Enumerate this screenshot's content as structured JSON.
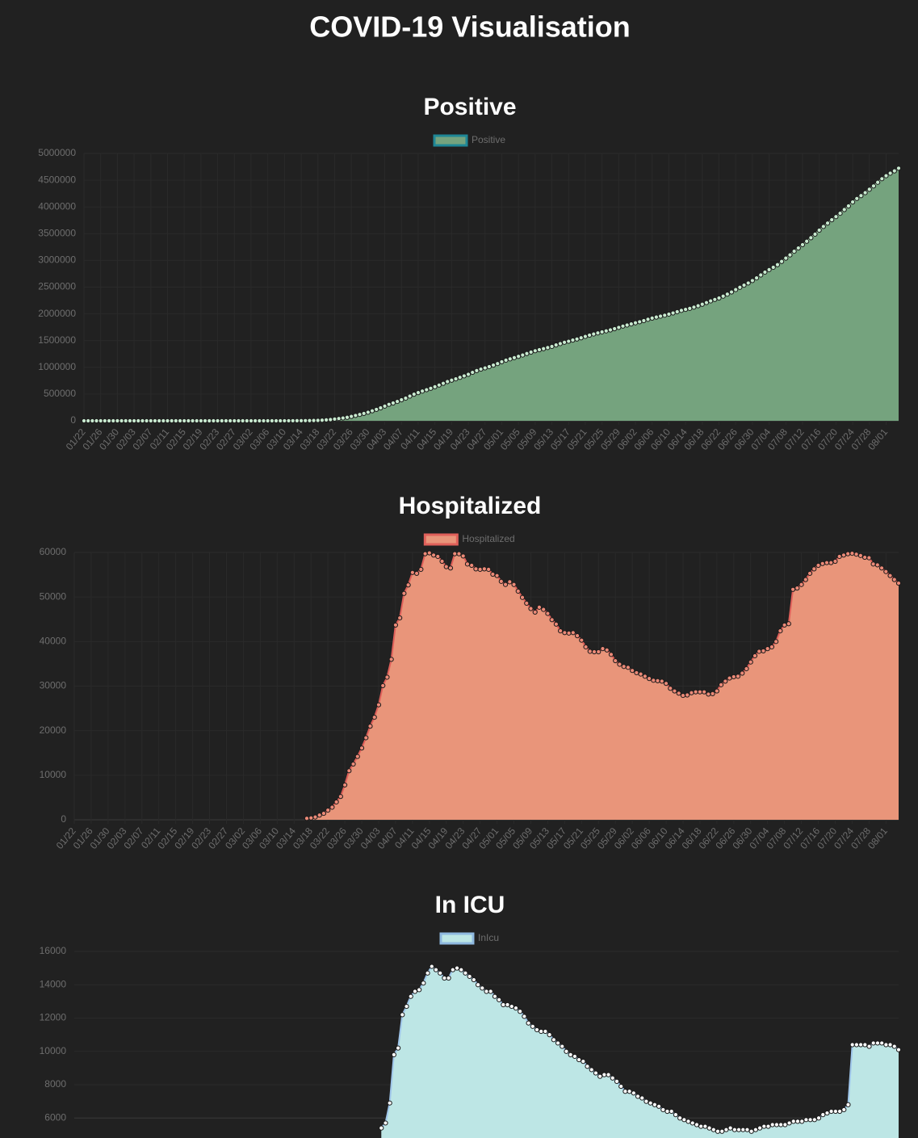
{
  "title": "COVID-19 Visualisation",
  "chart_data": [
    {
      "type": "line",
      "fill": true,
      "title": "Positive",
      "grid": true,
      "categories": [
        "01/22",
        null,
        null,
        null,
        "01/26",
        null,
        null,
        null,
        "01/30",
        null,
        null,
        null,
        "02/03",
        null,
        null,
        null,
        "02/07",
        null,
        null,
        null,
        "02/11",
        null,
        null,
        null,
        "02/15",
        null,
        null,
        null,
        "02/19",
        null,
        null,
        null,
        "02/23",
        null,
        null,
        null,
        "02/27",
        null,
        null,
        null,
        "03/02",
        null,
        null,
        null,
        "03/06",
        null,
        null,
        null,
        "03/10",
        null,
        null,
        null,
        "03/14",
        null,
        null,
        null,
        "03/18",
        null,
        null,
        null,
        "03/22",
        null,
        null,
        null,
        "03/26",
        null,
        null,
        null,
        "03/30",
        null,
        null,
        null,
        "04/03",
        null,
        null,
        null,
        "04/07",
        null,
        null,
        null,
        "04/11",
        null,
        null,
        null,
        "04/15",
        null,
        null,
        null,
        "04/19",
        null,
        null,
        null,
        "04/23",
        null,
        null,
        null,
        "04/27",
        null,
        null,
        null,
        "05/01",
        null,
        null,
        null,
        "05/05",
        null,
        null,
        null,
        "05/09",
        null,
        null,
        null,
        "05/13",
        null,
        null,
        null,
        "05/17",
        null,
        null,
        null,
        "05/21",
        null,
        null,
        null,
        "05/25",
        null,
        null,
        null,
        "05/29",
        null,
        null,
        null,
        "06/02",
        null,
        null,
        null,
        "06/06",
        null,
        null,
        null,
        "06/10",
        null,
        null,
        null,
        "06/14",
        null,
        null,
        null,
        "06/18",
        null,
        null,
        null,
        "06/22",
        null,
        null,
        null,
        "06/26",
        null,
        null,
        null,
        "06/30",
        null,
        null,
        null,
        "07/04",
        null,
        null,
        null,
        "07/08",
        null,
        null,
        null,
        "07/12",
        null,
        null,
        null,
        "07/16",
        null,
        null,
        null,
        "07/20",
        null,
        null,
        null,
        "07/24",
        null,
        null,
        null,
        "07/28",
        null,
        null,
        null,
        "08/01",
        null,
        null,
        null
      ],
      "ylim": [
        0,
        5000000
      ],
      "yticks": [
        0,
        500000,
        1000000,
        1500000,
        2000000,
        2500000,
        3000000,
        3500000,
        4000000,
        4500000,
        5000000
      ],
      "series": [
        {
          "name": "Positive",
          "color": "#75a37e",
          "border_color": "#1f8796",
          "line_color": "#a9d4ae",
          "point_color": "#c9ead0",
          "values": [
            0,
            0,
            0,
            0,
            0,
            0,
            0,
            0,
            0,
            0,
            0,
            0,
            0,
            0,
            0,
            0,
            0,
            0,
            0,
            0,
            0,
            0,
            0,
            0,
            0,
            0,
            0,
            0,
            0,
            0,
            0,
            0,
            0,
            0,
            0,
            0,
            0,
            0,
            0,
            17,
            29,
            48,
            118,
            176,
            223,
            341,
            417,
            584,
            778,
            1053,
            1315,
            1922,
            2450,
            3173,
            4019,
            5722,
            7730,
            11723,
            17038,
            23203,
            31888,
            42164,
            51970,
            63928,
            80735,
            99413,
            118234,
            137058,
            159689,
            185991,
            212802,
            241626,
            274059,
            307091,
            332308,
            361331,
            392594,
            423164,
            461437,
            496535,
            526396,
            555313,
            580619,
            607413,
            636350,
            667592,
            699706,
            732197,
            758809,
            784326,
            811865,
            839675,
            868395,
            905358,
            938154,
            965785,
            988451,
            1012582,
            1039909,
            1069424,
            1103781,
            1133069,
            1158040,
            1180375,
            1204351,
            1229331,
            1257023,
            1283929,
            1309550,
            1329260,
            1347881,
            1369376,
            1390406,
            1417774,
            1442824,
            1467820,
            1486757,
            1508308,
            1528568,
            1551853,
            1577147,
            1600937,
            1622612,
            1643246,
            1662302,
            1680913,
            1699176,
            1721750,
            1746019,
            1770165,
            1790172,
            1811277,
            1831821,
            1851520,
            1872660,
            1897838,
            1920061,
            1938823,
            1956527,
            1973797,
            1994283,
            2016027,
            2039636,
            2064018,
            2083253,
            2101867,
            2125066,
            2151264,
            2178710,
            2210097,
            2242014,
            2268753,
            2295657,
            2330578,
            2368403,
            2408213,
            2453479,
            2496000,
            2535938,
            2576602,
            2622086,
            2672104,
            2726226,
            2779766,
            2826823,
            2870493,
            2919193,
            2979553,
            3041710,
            3101873,
            3170473,
            3231743,
            3294052,
            3356726,
            3423074,
            3490052,
            3564865,
            3634101,
            3696896,
            3759211,
            3817982,
            3880470,
            3950026,
            4017977,
            4091436,
            4156734,
            4210606,
            4266052,
            4329452,
            4391286,
            4460185,
            4527059,
            4582779,
            4630385,
            4672993,
            4723669
          ]
        }
      ]
    },
    {
      "type": "line",
      "fill": true,
      "title": "Hospitalized",
      "grid": true,
      "categories": [
        "01/22",
        null,
        null,
        null,
        "01/26",
        null,
        null,
        null,
        "01/30",
        null,
        null,
        null,
        "02/03",
        null,
        null,
        null,
        "02/07",
        null,
        null,
        null,
        "02/11",
        null,
        null,
        null,
        "02/15",
        null,
        null,
        null,
        "02/19",
        null,
        null,
        null,
        "02/23",
        null,
        null,
        null,
        "02/27",
        null,
        null,
        null,
        "03/02",
        null,
        null,
        null,
        "03/06",
        null,
        null,
        null,
        "03/10",
        null,
        null,
        null,
        "03/14",
        null,
        null,
        null,
        "03/18",
        null,
        null,
        null,
        "03/22",
        null,
        null,
        null,
        "03/26",
        null,
        null,
        null,
        "03/30",
        null,
        null,
        null,
        "04/03",
        null,
        null,
        null,
        "04/07",
        null,
        null,
        null,
        "04/11",
        null,
        null,
        null,
        "04/15",
        null,
        null,
        null,
        "04/19",
        null,
        null,
        null,
        "04/23",
        null,
        null,
        null,
        "04/27",
        null,
        null,
        null,
        "05/01",
        null,
        null,
        null,
        "05/05",
        null,
        null,
        null,
        "05/09",
        null,
        null,
        null,
        "05/13",
        null,
        null,
        null,
        "05/17",
        null,
        null,
        null,
        "05/21",
        null,
        null,
        null,
        "05/25",
        null,
        null,
        null,
        "05/29",
        null,
        null,
        null,
        "06/02",
        null,
        null,
        null,
        "06/06",
        null,
        null,
        null,
        "06/10",
        null,
        null,
        null,
        "06/14",
        null,
        null,
        null,
        "06/18",
        null,
        null,
        null,
        "06/22",
        null,
        null,
        null,
        "06/26",
        null,
        null,
        null,
        "06/30",
        null,
        null,
        null,
        "07/04",
        null,
        null,
        null,
        "07/08",
        null,
        null,
        null,
        "07/12",
        null,
        null,
        null,
        "07/16",
        null,
        null,
        null,
        "07/20",
        null,
        null,
        null,
        "07/24",
        null,
        null,
        null,
        "07/28",
        null,
        null,
        null,
        "08/01",
        null,
        null,
        null
      ],
      "ylim": [
        0,
        60000
      ],
      "yticks": [
        0,
        10000,
        20000,
        30000,
        40000,
        50000,
        60000
      ],
      "series": [
        {
          "name": "Hospitalized",
          "color": "#e9957a",
          "border_color": "#e0605a",
          "line_color": "#e0605a",
          "point_color": "#ec8a78",
          "values": [
            null,
            null,
            null,
            null,
            null,
            null,
            null,
            null,
            null,
            null,
            null,
            null,
            null,
            null,
            null,
            null,
            null,
            null,
            null,
            null,
            null,
            null,
            null,
            null,
            null,
            null,
            null,
            null,
            null,
            null,
            null,
            null,
            null,
            null,
            null,
            null,
            null,
            null,
            null,
            null,
            null,
            null,
            null,
            null,
            null,
            null,
            null,
            null,
            null,
            null,
            null,
            null,
            null,
            null,
            null,
            325,
            416,
            617,
            1042,
            1436,
            2155,
            2812,
            3991,
            5226,
            7805,
            11000,
            12500,
            14200,
            16100,
            18400,
            21000,
            23000,
            25800,
            30100,
            32000,
            36000,
            43700,
            45300,
            50800,
            52700,
            55500,
            55300,
            56200,
            59700,
            59900,
            59400,
            59100,
            58000,
            56800,
            56500,
            59700,
            59700,
            59200,
            57400,
            57100,
            56300,
            56200,
            56300,
            56200,
            55100,
            54800,
            53500,
            52800,
            53400,
            52800,
            51300,
            49900,
            48600,
            47400,
            46600,
            47700,
            47200,
            46300,
            44900,
            43900,
            42400,
            42000,
            41900,
            42000,
            41300,
            40300,
            38800,
            37800,
            37700,
            37700,
            38400,
            38100,
            37100,
            35700,
            34900,
            34400,
            34200,
            33500,
            33000,
            32700,
            32200,
            31700,
            31300,
            31200,
            31100,
            30600,
            29500,
            28900,
            28400,
            27900,
            28000,
            28500,
            28700,
            28700,
            28700,
            28200,
            28300,
            28900,
            30300,
            31100,
            31800,
            32100,
            32200,
            32900,
            33900,
            35400,
            36800,
            37800,
            37900,
            38400,
            38800,
            40000,
            42400,
            43700,
            44000,
            51700,
            52000,
            52800,
            53900,
            55300,
            56300,
            57100,
            57500,
            57700,
            57700,
            58000,
            59100,
            59400,
            59700,
            59800,
            59600,
            59300,
            58900,
            58800,
            57400,
            57200,
            56500,
            55700,
            54800,
            53900,
            53100
          ]
        }
      ]
    },
    {
      "type": "line",
      "fill": true,
      "title": "In ICU",
      "grid": true,
      "ylim": [
        4800,
        16000
      ],
      "yticks": [
        6000,
        8000,
        10000,
        12000,
        14000,
        16000
      ],
      "series": [
        {
          "name": "InIcu",
          "color": "#bde6e5",
          "border_color": "#8fb9e0",
          "line_color": "#9fc6ea",
          "point_color": "#ffffff",
          "values": [
            null,
            null,
            null,
            null,
            null,
            null,
            null,
            null,
            null,
            null,
            null,
            null,
            null,
            null,
            null,
            null,
            null,
            null,
            null,
            null,
            null,
            null,
            null,
            null,
            null,
            null,
            null,
            null,
            null,
            null,
            null,
            null,
            null,
            null,
            null,
            null,
            null,
            null,
            null,
            null,
            null,
            null,
            null,
            null,
            null,
            null,
            null,
            null,
            null,
            null,
            null,
            null,
            null,
            null,
            null,
            null,
            null,
            null,
            null,
            null,
            null,
            null,
            null,
            null,
            null,
            null,
            null,
            null,
            null,
            null,
            null,
            null,
            null,
            5400,
            5700,
            6900,
            9800,
            10200,
            12200,
            12700,
            13300,
            13600,
            13700,
            14100,
            14700,
            15100,
            14900,
            14700,
            14400,
            14400,
            14900,
            15000,
            14900,
            14700,
            14500,
            14300,
            14000,
            13800,
            13600,
            13600,
            13300,
            13100,
            12800,
            12800,
            12700,
            12600,
            12400,
            12100,
            11700,
            11500,
            11300,
            11200,
            11200,
            11000,
            10700,
            10500,
            10300,
            10000,
            9800,
            9700,
            9500,
            9400,
            9100,
            8900,
            8700,
            8500,
            8600,
            8600,
            8400,
            8200,
            7900,
            7600,
            7600,
            7500,
            7300,
            7200,
            7000,
            6900,
            6800,
            6700,
            6500,
            6400,
            6400,
            6200,
            6000,
            5900,
            5800,
            5700,
            5600,
            5500,
            5500,
            5400,
            5300,
            5200,
            5200,
            5300,
            5400,
            5300,
            5300,
            5300,
            5300,
            5200,
            5300,
            5400,
            5500,
            5500,
            5600,
            5600,
            5600,
            5600,
            5700,
            5800,
            5800,
            5800,
            5900,
            5900,
            5900,
            6000,
            6200,
            6300,
            6400,
            6400,
            6400,
            6500,
            6800,
            10400,
            10400,
            10400,
            10400,
            10300,
            10500,
            10500,
            10500,
            10400,
            10400,
            10300,
            10100
          ]
        }
      ]
    }
  ]
}
